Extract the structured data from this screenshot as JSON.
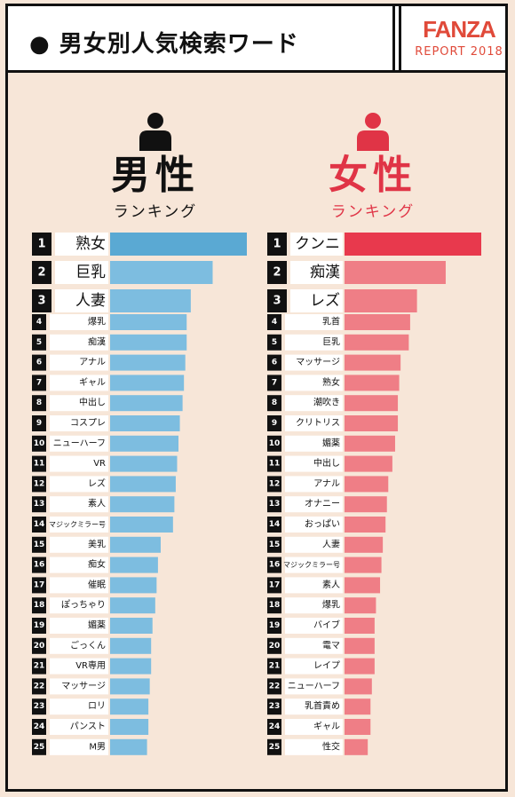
{
  "header": {
    "title": "● 男女別人気検索ワード",
    "brand_logo": "FANZA",
    "brand_sub": "REPORT 2018"
  },
  "male": {
    "title": "男性",
    "subtitle": "ランキング"
  },
  "female": {
    "title": "女性",
    "subtitle": "ランキング"
  },
  "colors": {
    "male_top": "#5aa9d3",
    "male_bar": "#7dbde0",
    "female_top": "#e8394d",
    "female_bar": "#ef7e86"
  },
  "chart_data": [
    {
      "type": "bar",
      "title": "男性ランキング",
      "categories": [
        "熟女",
        "巨乳",
        "人妻",
        "爆乳",
        "痴漢",
        "アナル",
        "ギャル",
        "中出し",
        "コスプレ",
        "ニューハーフ",
        "VR",
        "レズ",
        "素人",
        "マジックミラー号",
        "美乳",
        "痴女",
        "催眠",
        "ぽっちゃり",
        "媚薬",
        "ごっくん",
        "VR専用",
        "マッサージ",
        "ロリ",
        "パンスト",
        "M男"
      ],
      "ranks": [
        1,
        2,
        3,
        4,
        5,
        6,
        7,
        8,
        9,
        10,
        11,
        12,
        13,
        14,
        15,
        16,
        17,
        18,
        19,
        20,
        21,
        22,
        23,
        24,
        25
      ],
      "values": [
        100,
        75,
        59,
        56,
        56,
        55,
        54,
        53,
        51,
        50,
        49,
        48,
        47,
        46,
        37,
        35,
        34,
        33,
        31,
        30,
        30,
        29,
        28,
        28,
        27
      ]
    },
    {
      "type": "bar",
      "title": "女性ランキング",
      "categories": [
        "クンニ",
        "痴漢",
        "レズ",
        "乳首",
        "巨乳",
        "マッサージ",
        "熟女",
        "潮吹き",
        "クリトリス",
        "媚薬",
        "中出し",
        "アナル",
        "オナニー",
        "おっぱい",
        "人妻",
        "マジックミラー号",
        "素人",
        "爆乳",
        "バイブ",
        "電マ",
        "レイプ",
        "ニューハーフ",
        "乳首責め",
        "ギャル",
        "性交"
      ],
      "ranks": [
        1,
        2,
        3,
        4,
        5,
        6,
        7,
        8,
        9,
        10,
        11,
        12,
        13,
        14,
        15,
        16,
        17,
        18,
        19,
        20,
        21,
        22,
        23,
        24,
        25
      ],
      "values": [
        100,
        74,
        53,
        48,
        47,
        41,
        40,
        39,
        39,
        37,
        35,
        32,
        31,
        30,
        28,
        27,
        26,
        23,
        22,
        22,
        22,
        20,
        19,
        19,
        17
      ]
    }
  ]
}
